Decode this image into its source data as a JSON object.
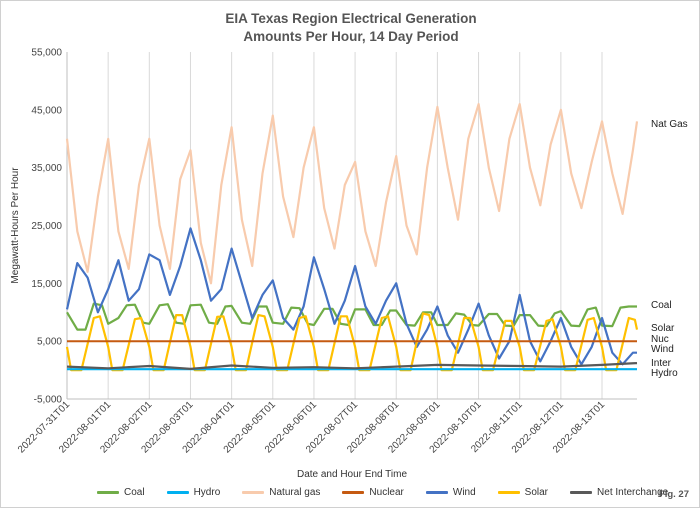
{
  "chart_data": {
    "type": "line",
    "title": "EIA Texas Region Electrical Generation",
    "subtitle": "Amounts Per Hour, 14 Day Period",
    "xlabel": "Date and Hour End Time",
    "ylabel": "Megawatt-Hours Per Hour",
    "ylim": [
      -5000,
      55000
    ],
    "yticks": [
      "-5,000",
      "5,000",
      "15,000",
      "25,000",
      "35,000",
      "45,000",
      "55,000"
    ],
    "ytick_values": [
      -5000,
      5000,
      15000,
      25000,
      35000,
      45000,
      55000
    ],
    "xticks": [
      "2022-07-31T01",
      "2022-08-01T01",
      "2022-08-02T01",
      "2022-08-03T01",
      "2022-08-04T01",
      "2022-08-05T01",
      "2022-08-06T01",
      "2022-08-07T01",
      "2022-08-08T01",
      "2022-08-09T01",
      "2022-08-10T01",
      "2022-08-11T01",
      "2022-08-12T01",
      "2022-08-13T01"
    ],
    "x_unit": "days from 2022-07-31T01",
    "grid": "vertical",
    "legend_position": "bottom",
    "series": [
      {
        "name": "Coal",
        "color": "#70ad47",
        "end_label": "Coal",
        "x": [
          0,
          0.25,
          0.45,
          0.65,
          0.85,
          1.0,
          1.25,
          1.45,
          1.65,
          1.85,
          2.0,
          2.25,
          2.45,
          2.65,
          2.85,
          3.0,
          3.25,
          3.45,
          3.65,
          3.85,
          4.0,
          4.25,
          4.45,
          4.65,
          4.85,
          5.0,
          5.25,
          5.45,
          5.65,
          5.85,
          6.0,
          6.25,
          6.45,
          6.65,
          6.85,
          7.0,
          7.25,
          7.45,
          7.65,
          7.85,
          8.0,
          8.25,
          8.45,
          8.65,
          8.85,
          9.0,
          9.25,
          9.45,
          9.65,
          9.85,
          10.0,
          10.25,
          10.45,
          10.65,
          10.85,
          11.0,
          11.25,
          11.45,
          11.65,
          11.85,
          12.0,
          12.25,
          12.45,
          12.65,
          12.85,
          13.0,
          13.25,
          13.45,
          13.65,
          13.85
        ],
        "y": [
          10000,
          7000,
          7000,
          11500,
          11200,
          8000,
          9000,
          11200,
          11300,
          8200,
          8000,
          11200,
          11400,
          8200,
          8000,
          11200,
          11300,
          8200,
          8000,
          11000,
          11100,
          8200,
          8000,
          11000,
          11000,
          8200,
          8000,
          10800,
          10700,
          8000,
          7800,
          10600,
          10600,
          8000,
          7800,
          10500,
          10500,
          7800,
          7800,
          10300,
          10300,
          7800,
          7700,
          10000,
          10000,
          7800,
          7800,
          9800,
          9600,
          7800,
          7700,
          9700,
          9700,
          7700,
          7600,
          9500,
          9500,
          7700,
          7600,
          9800,
          10200,
          7700,
          7600,
          10500,
          10800,
          7700,
          7600,
          10800,
          11000,
          11000
        ]
      },
      {
        "name": "Hydro",
        "color": "#00b0f0",
        "end_label": "Hydro",
        "x": [
          0,
          2,
          4,
          6,
          8,
          10,
          12,
          13.85
        ],
        "y": [
          150,
          150,
          150,
          150,
          150,
          150,
          150,
          150
        ]
      },
      {
        "name": "Natural gas",
        "color": "#f8cbad",
        "end_label": "Nat Gas",
        "x": [
          0,
          0.25,
          0.5,
          0.75,
          1.0,
          1.25,
          1.5,
          1.75,
          2.0,
          2.25,
          2.5,
          2.75,
          3.0,
          3.25,
          3.5,
          3.75,
          4.0,
          4.25,
          4.5,
          4.75,
          5.0,
          5.25,
          5.5,
          5.75,
          6.0,
          6.25,
          6.5,
          6.75,
          7.0,
          7.25,
          7.5,
          7.75,
          8.0,
          8.25,
          8.5,
          8.75,
          9.0,
          9.25,
          9.5,
          9.75,
          10.0,
          10.25,
          10.5,
          10.75,
          11.0,
          11.25,
          11.5,
          11.75,
          12.0,
          12.25,
          12.5,
          12.75,
          13.0,
          13.25,
          13.5,
          13.75,
          13.85
        ],
        "y": [
          40000,
          24000,
          17000,
          30000,
          40000,
          24000,
          17500,
          32000,
          40000,
          25000,
          17500,
          33000,
          38000,
          22000,
          15000,
          32000,
          42000,
          26000,
          18000,
          34000,
          44000,
          30000,
          23000,
          35000,
          42000,
          28000,
          21000,
          32000,
          36000,
          24000,
          18000,
          29000,
          37000,
          25000,
          20000,
          35000,
          45500,
          35000,
          26000,
          40000,
          46000,
          35000,
          27500,
          40000,
          46000,
          35000,
          28500,
          39000,
          45000,
          34000,
          28000,
          36000,
          43000,
          34000,
          27000,
          38000,
          43000
        ]
      },
      {
        "name": "Nuclear",
        "color": "#c55a11",
        "end_label": "Nuc",
        "x": [
          0,
          13.85
        ],
        "y": [
          5000,
          5000
        ]
      },
      {
        "name": "Wind",
        "color": "#4472c4",
        "end_label": "Wind",
        "x": [
          0,
          0.25,
          0.5,
          0.75,
          1.0,
          1.25,
          1.5,
          1.75,
          2.0,
          2.25,
          2.5,
          2.75,
          3.0,
          3.25,
          3.5,
          3.75,
          4.0,
          4.25,
          4.5,
          4.75,
          5.0,
          5.25,
          5.5,
          5.75,
          6.0,
          6.25,
          6.5,
          6.75,
          7.0,
          7.25,
          7.5,
          7.75,
          8.0,
          8.25,
          8.5,
          8.75,
          9.0,
          9.25,
          9.5,
          9.75,
          10.0,
          10.25,
          10.5,
          10.75,
          11.0,
          11.25,
          11.5,
          11.75,
          12.0,
          12.25,
          12.5,
          12.75,
          13.0,
          13.25,
          13.5,
          13.75,
          13.85
        ],
        "y": [
          10500,
          18500,
          16000,
          10000,
          14000,
          19000,
          12000,
          14000,
          20000,
          19000,
          13000,
          18000,
          24500,
          19000,
          12000,
          14000,
          21000,
          15000,
          9000,
          13000,
          15500,
          9000,
          7000,
          11000,
          19500,
          14000,
          8000,
          12000,
          18000,
          11000,
          8000,
          12000,
          15000,
          8000,
          4000,
          7000,
          11000,
          6000,
          3000,
          7000,
          11500,
          6000,
          2000,
          5000,
          13000,
          5000,
          1500,
          5000,
          9000,
          4000,
          1000,
          4000,
          9000,
          3000,
          1000,
          3000,
          3000
        ]
      },
      {
        "name": "Solar",
        "color": "#ffc000",
        "end_label": "Solar",
        "x": [
          0,
          0.1,
          0.25,
          0.35,
          0.65,
          0.8,
          1.0,
          1.1,
          1.25,
          1.35,
          1.65,
          1.8,
          2.0,
          2.1,
          2.25,
          2.35,
          2.65,
          2.8,
          3.0,
          3.1,
          3.25,
          3.35,
          3.65,
          3.8,
          4.0,
          4.1,
          4.25,
          4.35,
          4.65,
          4.8,
          5.0,
          5.1,
          5.25,
          5.35,
          5.65,
          5.8,
          6.0,
          6.1,
          6.25,
          6.35,
          6.65,
          6.8,
          7.0,
          7.1,
          7.25,
          7.35,
          7.65,
          7.8,
          8.0,
          8.1,
          8.25,
          8.35,
          8.65,
          8.8,
          9.0,
          9.1,
          9.25,
          9.35,
          9.65,
          9.8,
          10.0,
          10.1,
          10.25,
          10.35,
          10.65,
          10.8,
          11.0,
          11.1,
          11.25,
          11.35,
          11.65,
          11.8,
          12.0,
          12.1,
          12.25,
          12.35,
          12.65,
          12.8,
          13.0,
          13.1,
          13.25,
          13.35,
          13.65,
          13.8,
          13.85
        ],
        "y": [
          4000,
          0,
          0,
          0,
          9000,
          9300,
          4000,
          0,
          0,
          0,
          8800,
          9000,
          4000,
          0,
          0,
          0,
          9500,
          9500,
          4000,
          0,
          0,
          0,
          9200,
          9300,
          4000,
          0,
          0,
          0,
          9500,
          9300,
          4000,
          0,
          0,
          0,
          9000,
          9300,
          4000,
          0,
          0,
          0,
          9300,
          9300,
          4000,
          0,
          0,
          0,
          9000,
          9300,
          4000,
          0,
          0,
          0,
          9800,
          9500,
          4000,
          0,
          0,
          0,
          9000,
          9000,
          4000,
          0,
          0,
          0,
          8500,
          8500,
          4000,
          0,
          0,
          0,
          8500,
          8800,
          4000,
          0,
          0,
          0,
          8700,
          9000,
          4000,
          0,
          0,
          0,
          9000,
          8700,
          7000
        ]
      },
      {
        "name": "Net Interchange",
        "color": "#595959",
        "end_label": "Inter",
        "x": [
          0,
          1,
          2,
          3,
          4,
          5,
          6,
          7,
          8,
          9,
          10,
          11,
          12,
          13,
          13.85
        ],
        "y": [
          600,
          300,
          700,
          200,
          800,
          400,
          500,
          300,
          600,
          900,
          800,
          700,
          600,
          900,
          1200
        ]
      }
    ]
  },
  "figure_label": "Fig. 27"
}
